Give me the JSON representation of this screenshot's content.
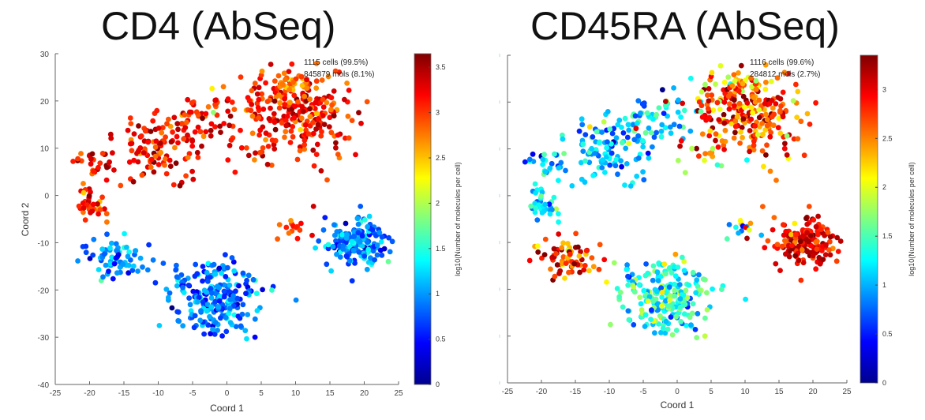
{
  "chart_data": [
    {
      "type": "scatter",
      "title": "CD4 (AbSeq)",
      "xlabel": "Coord 1",
      "ylabel": "Coord 2",
      "xlim": [
        -25,
        25
      ],
      "ylim": [
        -40,
        30
      ],
      "xticks": [
        "-25",
        "-20",
        "-15",
        "-10",
        "-5",
        "0",
        "5",
        "10",
        "15",
        "20",
        "25"
      ],
      "yticks": [
        "30",
        "20",
        "10",
        "0",
        "-10",
        "-20",
        "-30",
        "-40"
      ],
      "show_yticks": true,
      "annotation": [
        "1115 cells (99.5%)",
        "845879 mols (8.1%)"
      ],
      "colorbar": {
        "label": "log10(Number of molecules per cell)",
        "range": [
          0,
          3.65
        ],
        "colormap": "jet",
        "ticks": [
          "0",
          "0.5",
          "1",
          "1.5",
          "2",
          "2.5",
          "3",
          "3.5"
        ]
      },
      "clusters": [
        {
          "name": "upper-left-arm",
          "cx": -19,
          "cy": 7,
          "sx": 1.5,
          "sy": 1.5,
          "n": 25,
          "color_value": 3.2,
          "color_spread": 0.3
        },
        {
          "name": "upper-band-left",
          "cx": -10,
          "cy": 10,
          "sx": 3.5,
          "sy": 3.5,
          "n": 110,
          "color_value": 3.2,
          "color_spread": 0.3
        },
        {
          "name": "upper-band-mid",
          "cx": -3,
          "cy": 17,
          "sx": 3,
          "sy": 3,
          "n": 60,
          "color_value": 3.1,
          "color_spread": 0.3
        },
        {
          "name": "upper-right-dense",
          "cx": 10,
          "cy": 17,
          "sx": 4,
          "sy": 4.5,
          "n": 230,
          "color_value": 3.15,
          "color_spread": 0.3
        },
        {
          "name": "upper-right-top",
          "cx": 9,
          "cy": 24,
          "sx": 2.5,
          "sy": 1.5,
          "n": 40,
          "color_value": 2.8,
          "color_spread": 0.2
        },
        {
          "name": "scatter-mid",
          "cx": 4,
          "cy": 8,
          "sx": 3,
          "sy": 2,
          "n": 12,
          "color_value": 3.1,
          "color_spread": 0.2
        },
        {
          "name": "left-cluster-0",
          "cx": -20,
          "cy": -2,
          "sx": 1.2,
          "sy": 2,
          "n": 35,
          "color_value": 3.0,
          "color_spread": 0.25
        },
        {
          "name": "left-lower-cluster",
          "cx": -16,
          "cy": -13,
          "sx": 2.2,
          "sy": 2.2,
          "n": 70,
          "color_value": 1.0,
          "color_spread": 0.3
        },
        {
          "name": "bottom-cluster",
          "cx": -1,
          "cy": -22,
          "sx": 3.2,
          "sy": 4,
          "n": 230,
          "color_value": 0.85,
          "color_spread": 0.3
        },
        {
          "name": "right-lower-cluster",
          "cx": 19,
          "cy": -10,
          "sx": 2.5,
          "sy": 2.5,
          "n": 170,
          "color_value": 0.9,
          "color_spread": 0.3
        },
        {
          "name": "bridge-arc",
          "cx": 9,
          "cy": -7,
          "sx": 2,
          "sy": 1,
          "n": 14,
          "color_value": 3.0,
          "color_spread": 0.2
        },
        {
          "name": "x-cluster",
          "cx": -7,
          "cy": -16,
          "sx": 0.6,
          "sy": 0.8,
          "n": 6,
          "color_value": 0.9,
          "color_spread": 0.1
        }
      ]
    },
    {
      "type": "scatter",
      "title": "CD45RA (AbSeq)",
      "xlabel": "Coord 1",
      "ylabel": "",
      "xlim": [
        -25,
        25
      ],
      "ylim": [
        -40,
        30
      ],
      "xticks": [
        "-25",
        "-20",
        "-15",
        "-10",
        "-5",
        "0",
        "5",
        "10",
        "15",
        "20",
        "25"
      ],
      "yticks": [
        "",
        "",
        "",
        "",
        "",
        "",
        "",
        ""
      ],
      "show_yticks": false,
      "annotation": [
        "1116 cells (99.6%)",
        "284812 mols (2.7%)"
      ],
      "colorbar": {
        "label": "log10(Number of molecules per cell)",
        "range": [
          0,
          3.35
        ],
        "colormap": "jet",
        "ticks": [
          "0",
          "0.5",
          "1",
          "1.5",
          "2",
          "2.5",
          "3"
        ]
      },
      "clusters": [
        {
          "name": "upper-left-arm",
          "cx": -19,
          "cy": 7,
          "sx": 1.5,
          "sy": 1.5,
          "n": 25,
          "color_value": 1.0,
          "color_spread": 0.3
        },
        {
          "name": "upper-band-left",
          "cx": -10,
          "cy": 10,
          "sx": 3.5,
          "sy": 3.5,
          "n": 110,
          "color_value": 1.0,
          "color_spread": 0.35
        },
        {
          "name": "upper-band-mid",
          "cx": -3,
          "cy": 17,
          "sx": 3,
          "sy": 3,
          "n": 60,
          "color_value": 1.1,
          "color_spread": 0.4
        },
        {
          "name": "upper-right-dense",
          "cx": 10,
          "cy": 17,
          "sx": 4,
          "sy": 4.5,
          "n": 230,
          "color_value": 2.7,
          "color_spread": 0.4
        },
        {
          "name": "upper-right-top",
          "cx": 9,
          "cy": 24,
          "sx": 2.5,
          "sy": 1.5,
          "n": 40,
          "color_value": 2.4,
          "color_spread": 0.4
        },
        {
          "name": "scatter-mid",
          "cx": 4,
          "cy": 8,
          "sx": 3,
          "sy": 2,
          "n": 12,
          "color_value": 1.9,
          "color_spread": 0.6
        },
        {
          "name": "left-cluster-0",
          "cx": -20,
          "cy": -2,
          "sx": 1.2,
          "sy": 2,
          "n": 35,
          "color_value": 1.3,
          "color_spread": 0.4
        },
        {
          "name": "left-lower-cluster",
          "cx": -16,
          "cy": -13,
          "sx": 2.2,
          "sy": 2.2,
          "n": 70,
          "color_value": 2.8,
          "color_spread": 0.5
        },
        {
          "name": "bottom-cluster",
          "cx": -1,
          "cy": -22,
          "sx": 3.2,
          "sy": 4,
          "n": 230,
          "color_value": 1.4,
          "color_spread": 0.4
        },
        {
          "name": "right-lower-cluster",
          "cx": 19,
          "cy": -10,
          "sx": 2.5,
          "sy": 2.5,
          "n": 170,
          "color_value": 3.0,
          "color_spread": 0.25
        },
        {
          "name": "bridge-arc",
          "cx": 9,
          "cy": -7,
          "sx": 2,
          "sy": 1,
          "n": 14,
          "color_value": 1.5,
          "color_spread": 0.7
        },
        {
          "name": "x-cluster",
          "cx": -7,
          "cy": -16,
          "sx": 0.6,
          "sy": 0.8,
          "n": 6,
          "color_value": 1.0,
          "color_spread": 0.3
        }
      ]
    }
  ]
}
